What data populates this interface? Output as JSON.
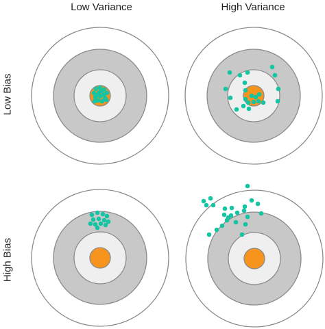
{
  "columns": [
    "Low Variance",
    "High Variance"
  ],
  "rows": [
    "Low Bias",
    "High Bias"
  ],
  "colors": {
    "outer_ring": "#ffffff",
    "middle_ring": "#c8c8c8",
    "inner_ring": "#efefef",
    "bullseye": "#f7941d",
    "points": "#14c4a2",
    "stroke": "#8a8a8a"
  },
  "targets": [
    {
      "id": "low-bias-low-variance",
      "shots": [
        [
          -6,
          -10
        ],
        [
          0,
          -12
        ],
        [
          6,
          -9
        ],
        [
          -9,
          -4
        ],
        [
          -2,
          -4
        ],
        [
          5,
          -2
        ],
        [
          10,
          -4
        ],
        [
          -7,
          2
        ],
        [
          0,
          1
        ],
        [
          7,
          3
        ],
        [
          -3,
          7
        ],
        [
          3,
          8
        ],
        [
          9,
          6
        ],
        [
          -8,
          8
        ],
        [
          1,
          -7
        ],
        [
          -4,
          -1
        ]
      ]
    },
    {
      "id": "low-bias-high-variance",
      "shots": [
        [
          -35,
          -34
        ],
        [
          -20,
          -30
        ],
        [
          -13,
          -19
        ],
        [
          -12,
          -8
        ],
        [
          -41,
          -10
        ],
        [
          -34,
          3
        ],
        [
          -12,
          5
        ],
        [
          -3,
          0
        ],
        [
          3,
          2
        ],
        [
          -8,
          10
        ],
        [
          0,
          9
        ],
        [
          7,
          8
        ],
        [
          -25,
          20
        ],
        [
          -7,
          19
        ],
        [
          14,
          10
        ],
        [
          27,
          -42
        ],
        [
          31,
          -30
        ],
        [
          36,
          -10
        ],
        [
          35,
          8
        ],
        [
          -9,
          -34
        ],
        [
          8,
          -2
        ],
        [
          -15,
          15
        ]
      ]
    },
    {
      "id": "high-bias-low-variance",
      "shots": [
        [
          -12,
          -63
        ],
        [
          -4,
          -66
        ],
        [
          4,
          -64
        ],
        [
          10,
          -61
        ],
        [
          -10,
          -56
        ],
        [
          -2,
          -57
        ],
        [
          6,
          -55
        ],
        [
          12,
          -53
        ],
        [
          -14,
          -50
        ],
        [
          -7,
          -49
        ],
        [
          1,
          -50
        ],
        [
          8,
          -48
        ],
        [
          -4,
          -44
        ]
      ]
    },
    {
      "id": "high-bias-high-variance",
      "shots": [
        [
          -74,
          -84
        ],
        [
          -70,
          -78
        ],
        [
          -64,
          -88
        ],
        [
          -60,
          -78
        ],
        [
          -10,
          -106
        ],
        [
          -4,
          -85
        ],
        [
          -14,
          -76
        ],
        [
          -43,
          -73
        ],
        [
          -33,
          -74
        ],
        [
          -44,
          -64
        ],
        [
          -34,
          -63
        ],
        [
          -25,
          -67
        ],
        [
          -15,
          -70
        ],
        [
          -10,
          -61
        ],
        [
          -40,
          -56
        ],
        [
          -27,
          -53
        ],
        [
          -47,
          -48
        ],
        [
          -13,
          -50
        ],
        [
          -18,
          -35
        ],
        [
          -55,
          -42
        ],
        [
          -66,
          -35
        ],
        [
          10,
          -66
        ],
        [
          5,
          -80
        ],
        [
          -38,
          -60
        ]
      ]
    }
  ]
}
